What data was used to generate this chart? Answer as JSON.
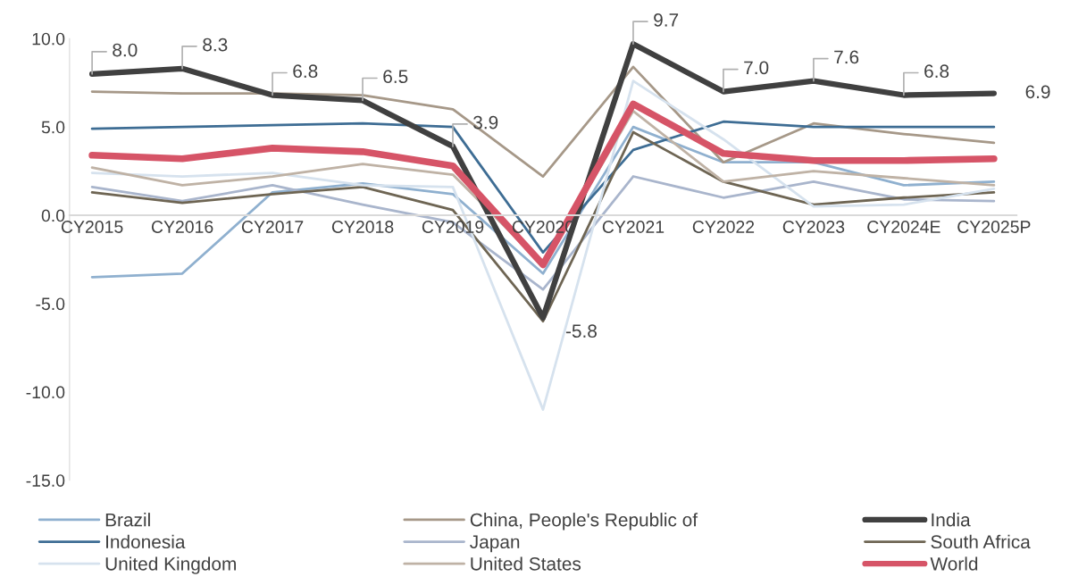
{
  "chart_data": {
    "type": "line",
    "categories": [
      "CY2015",
      "CY2016",
      "CY2017",
      "CY2018",
      "CY2019",
      "CY2020",
      "CY2021",
      "CY2022",
      "CY2023",
      "CY2024E",
      "CY2025P"
    ],
    "series": [
      {
        "name": "Brazil",
        "color": "#8fb0cf",
        "values": [
          -3.5,
          -3.3,
          1.3,
          1.8,
          1.2,
          -3.3,
          5.0,
          3.0,
          3.0,
          1.7,
          1.9
        ]
      },
      {
        "name": "China, People's Republic of",
        "color": "#a69888",
        "values": [
          7.0,
          6.9,
          6.9,
          6.8,
          6.0,
          2.2,
          8.4,
          3.0,
          5.2,
          4.6,
          4.1
        ]
      },
      {
        "name": "India",
        "color": "#404040",
        "values": [
          8.0,
          8.3,
          6.8,
          6.5,
          3.9,
          -5.8,
          9.7,
          7.0,
          7.6,
          6.8,
          6.9
        ],
        "value_labels": [
          "8.0",
          "8.3",
          "6.8",
          "6.5",
          "3.9",
          "-5.8",
          "9.7",
          "7.0",
          "7.6",
          "6.8",
          "6.9"
        ]
      },
      {
        "name": "Indonesia",
        "color": "#3e6d94",
        "values": [
          4.9,
          5.0,
          5.1,
          5.2,
          5.0,
          -2.1,
          3.7,
          5.3,
          5.0,
          5.0,
          5.0
        ]
      },
      {
        "name": "Japan",
        "color": "#a9b5cc",
        "values": [
          1.6,
          0.8,
          1.7,
          0.6,
          -0.4,
          -4.2,
          2.2,
          1.0,
          1.9,
          0.9,
          0.8
        ]
      },
      {
        "name": "South Africa",
        "color": "#6e6553",
        "values": [
          1.3,
          0.7,
          1.2,
          1.6,
          0.3,
          -6.0,
          4.7,
          1.9,
          0.6,
          1.0,
          1.3
        ]
      },
      {
        "name": "United Kingdom",
        "color": "#d6e2ee",
        "values": [
          2.4,
          2.2,
          2.4,
          1.7,
          1.6,
          -11.0,
          7.6,
          4.3,
          0.5,
          0.6,
          1.5
        ]
      },
      {
        "name": "United States",
        "color": "#bfb2a5",
        "values": [
          2.7,
          1.7,
          2.2,
          2.9,
          2.3,
          -2.8,
          5.9,
          1.9,
          2.5,
          2.1,
          1.7
        ]
      },
      {
        "name": "World",
        "color": "#d65467",
        "values": [
          3.4,
          3.2,
          3.8,
          3.6,
          2.8,
          -2.8,
          6.3,
          3.5,
          3.1,
          3.1,
          3.2
        ]
      }
    ],
    "ylim": [
      -15,
      10
    ],
    "yticks": [
      {
        "value": -15,
        "label": "-15.0"
      },
      {
        "value": -10,
        "label": "-10.0"
      },
      {
        "value": -5,
        "label": "-5.0"
      },
      {
        "value": 0,
        "label": "0.0"
      },
      {
        "value": 5,
        "label": "5.0"
      },
      {
        "value": 10,
        "label": "10.0"
      }
    ],
    "grid": false,
    "legend": "bottom",
    "marker": "none",
    "line_style": "solid"
  }
}
